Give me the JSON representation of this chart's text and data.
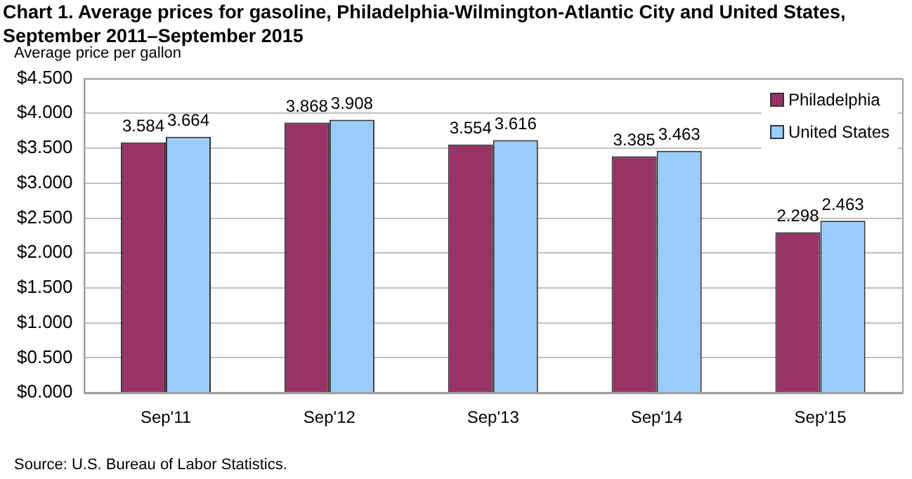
{
  "chart_data": {
    "type": "bar",
    "title": "Chart 1. Average prices for gasoline, Philadelphia-Wilmington-Atlantic City and United States, September 2011–September 2015",
    "ylabel": "Average price per gallon",
    "categories": [
      "Sep'11",
      "Sep'12",
      "Sep'13",
      "Sep'14",
      "Sep'15"
    ],
    "series": [
      {
        "name": "Philadelphia",
        "color": "#993366",
        "values": [
          3.584,
          3.868,
          3.554,
          3.385,
          2.298
        ]
      },
      {
        "name": "United States",
        "color": "#99ccff",
        "values": [
          3.664,
          3.908,
          3.616,
          3.463,
          2.463
        ]
      }
    ],
    "ylim": [
      0,
      4.5
    ],
    "yticks": [
      {
        "value": 0,
        "label": "$0.000"
      },
      {
        "value": 0.5,
        "label": "$0.500"
      },
      {
        "value": 1,
        "label": "$1.000"
      },
      {
        "value": 1.5,
        "label": "$1.500"
      },
      {
        "value": 2,
        "label": "$2.000"
      },
      {
        "value": 2.5,
        "label": "$2.500"
      },
      {
        "value": 3,
        "label": "$3.000"
      },
      {
        "value": 3.5,
        "label": "$3.500"
      },
      {
        "value": 4,
        "label": "$4.000"
      },
      {
        "value": 4.5,
        "label": "$4.500"
      }
    ],
    "grid": "y",
    "legend": "top right",
    "data_labels": true,
    "annotations": [
      "Source: U.S. Bureau of Labor Statistics."
    ]
  }
}
